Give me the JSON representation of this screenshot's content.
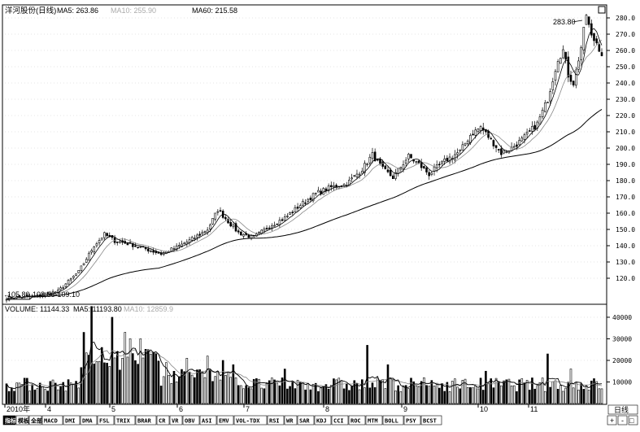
{
  "header": {
    "title": "洋河股份(日线)",
    "ma5_label": "MA5: 263.86",
    "ma10_label": "MA10: 255.90",
    "ma60_label": "MA60: 215.58"
  },
  "volume_header": {
    "label": "VOLUME: 11144.33",
    "ma5_label": "MA5: 11193.80",
    "ma10_label": "MA10: 12859.9"
  },
  "annotations": {
    "high": "283.80",
    "low": "105.80",
    "range": "108.66-109.10"
  },
  "tabs": [
    "指标",
    "模板",
    "全部",
    "MACD",
    "DMI",
    "DMA",
    "FSL",
    "TRIX",
    "BRAR",
    "CR",
    "VR",
    "OBV",
    "ASI",
    "EMV",
    "VOL-TDX",
    "RSI",
    "WR",
    "SAR",
    "KDJ",
    "CCI",
    "ROC",
    "MTM",
    "BOLL",
    "PSY",
    "BCST"
  ],
  "controls": {
    "period": "日线",
    "plus": "+",
    "minus": "-",
    "square": "□"
  },
  "chart_data": [
    {
      "type": "candlestick",
      "title": "洋河股份(日线)",
      "x_ticks": [
        "2010年",
        "4",
        "5",
        "6",
        "7",
        "8",
        "9",
        "10",
        "11"
      ],
      "y_ticks": [
        120,
        130,
        140,
        150,
        160,
        170,
        180,
        190,
        200,
        210,
        220,
        230,
        240,
        250,
        260,
        270,
        280
      ],
      "ylim": [
        104,
        288
      ],
      "keypoints": [
        [
          0,
          108
        ],
        [
          12,
          109
        ],
        [
          20,
          112
        ],
        [
          28,
          124
        ],
        [
          34,
          140
        ],
        [
          38,
          147
        ],
        [
          42,
          143
        ],
        [
          48,
          141
        ],
        [
          54,
          138
        ],
        [
          60,
          135
        ],
        [
          66,
          139
        ],
        [
          72,
          144
        ],
        [
          78,
          150
        ],
        [
          82,
          162
        ],
        [
          86,
          155
        ],
        [
          90,
          148
        ],
        [
          96,
          145
        ],
        [
          102,
          152
        ],
        [
          108,
          157
        ],
        [
          114,
          165
        ],
        [
          120,
          172
        ],
        [
          126,
          176
        ],
        [
          132,
          178
        ],
        [
          138,
          187
        ],
        [
          142,
          196
        ],
        [
          146,
          187
        ],
        [
          150,
          182
        ],
        [
          156,
          195
        ],
        [
          160,
          190
        ],
        [
          164,
          184
        ],
        [
          170,
          192
        ],
        [
          176,
          198
        ],
        [
          180,
          208
        ],
        [
          184,
          213
        ],
        [
          188,
          205
        ],
        [
          192,
          197
        ],
        [
          196,
          200
        ],
        [
          200,
          205
        ],
        [
          206,
          215
        ],
        [
          210,
          230
        ],
        [
          214,
          255
        ],
        [
          216,
          260
        ],
        [
          218,
          245
        ],
        [
          220,
          240
        ],
        [
          223,
          262
        ],
        [
          225,
          282
        ],
        [
          227,
          268
        ],
        [
          229,
          265
        ],
        [
          231,
          258
        ]
      ],
      "ma5_final": 263.86,
      "ma10_final": 255.9,
      "ma60_final": 215.58
    },
    {
      "type": "bar",
      "title": "VOLUME",
      "y_ticks": [
        10000,
        20000,
        30000,
        40000
      ],
      "ylim": [
        0,
        43000
      ],
      "spikes": [
        [
          30,
          33000
        ],
        [
          33,
          45000
        ],
        [
          37,
          26000
        ],
        [
          41,
          40000
        ],
        [
          43,
          24000
        ],
        [
          46,
          33000
        ],
        [
          48,
          30000
        ],
        [
          52,
          30000
        ],
        [
          55,
          25000
        ],
        [
          62,
          19000
        ],
        [
          70,
          21000
        ],
        [
          78,
          22000
        ],
        [
          84,
          20000
        ],
        [
          88,
          18000
        ],
        [
          108,
          16000
        ],
        [
          140,
          27000
        ],
        [
          148,
          18000
        ],
        [
          186,
          15000
        ],
        [
          210,
          23000
        ],
        [
          219,
          16000
        ]
      ],
      "volume_final": 11144.33,
      "vol_ma5_final": 11193.8,
      "vol_ma10_final": 12859.9
    }
  ],
  "colors": {
    "ink": "#000000",
    "grid": "#d8d8d8",
    "background": "#ffffff"
  }
}
